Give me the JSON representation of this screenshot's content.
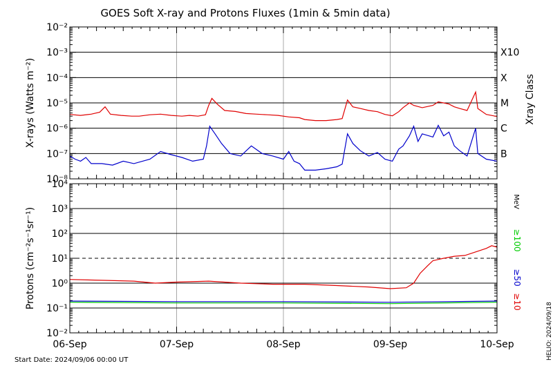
{
  "title": "GOES Soft X-ray and Protons Fluxes   (1min & 5min data)",
  "start_date_label": "Start Date: 2024/09/06 00:00 UT",
  "credit": "HELIO: 2024/09/18",
  "colors": {
    "red": "#e00000",
    "blue": "#0000cc",
    "green": "#00cc00",
    "dashed": "#000000"
  },
  "chart_data": [
    {
      "type": "line",
      "panel": "xray",
      "ylabel": "X-rays (Watts m⁻²)",
      "yscale": "log",
      "ylim": [
        1e-08,
        0.01
      ],
      "y_tick_labels": [
        "10⁻⁸",
        "10⁻⁷",
        "10⁻⁶",
        "10⁻⁵",
        "10⁻⁴",
        "10⁻³",
        "10⁻²"
      ],
      "x_tick_labels": [
        "06-Sep",
        "07-Sep",
        "08-Sep",
        "09-Sep",
        "10-Sep"
      ],
      "xlim_days": [
        0,
        4
      ],
      "right_labels": [
        {
          "label": "X10",
          "value": 0.001
        },
        {
          "label": "X",
          "value": 0.0001
        },
        {
          "label": "M",
          "value": 1e-05
        },
        {
          "label": "C",
          "value": 1e-06
        },
        {
          "label": "B",
          "value": 1e-07
        }
      ],
      "right_axis_title": "Xray Class",
      "series": [
        {
          "color": "red",
          "points": [
            [
              0,
              3.5e-06
            ],
            [
              0.1,
              3.2e-06
            ],
            [
              0.2,
              3.6e-06
            ],
            [
              0.28,
              4.3e-06
            ],
            [
              0.33,
              7e-06
            ],
            [
              0.38,
              3.6e-06
            ],
            [
              0.48,
              3.2e-06
            ],
            [
              0.58,
              3e-06
            ],
            [
              0.65,
              3e-06
            ],
            [
              0.75,
              3.4e-06
            ],
            [
              0.85,
              3.6e-06
            ],
            [
              0.95,
              3.2e-06
            ],
            [
              1.05,
              3e-06
            ],
            [
              1.12,
              3.2e-06
            ],
            [
              1.2,
              3e-06
            ],
            [
              1.27,
              3.4e-06
            ],
            [
              1.3,
              8e-06
            ],
            [
              1.33,
              1.5e-05
            ],
            [
              1.38,
              9e-06
            ],
            [
              1.45,
              5e-06
            ],
            [
              1.55,
              4.6e-06
            ],
            [
              1.65,
              3.8e-06
            ],
            [
              1.75,
              3.6e-06
            ],
            [
              1.85,
              3.4e-06
            ],
            [
              1.95,
              3.2e-06
            ],
            [
              2.05,
              2.8e-06
            ],
            [
              2.15,
              2.6e-06
            ],
            [
              2.2,
              2.2e-06
            ],
            [
              2.3,
              2e-06
            ],
            [
              2.4,
              2e-06
            ],
            [
              2.5,
              2.2e-06
            ],
            [
              2.55,
              2.4e-06
            ],
            [
              2.6,
              1.3e-05
            ],
            [
              2.65,
              7e-06
            ],
            [
              2.72,
              6e-06
            ],
            [
              2.8,
              5e-06
            ],
            [
              2.88,
              4.5e-06
            ],
            [
              2.95,
              3.5e-06
            ],
            [
              3.02,
              3.1e-06
            ],
            [
              3.08,
              4.5e-06
            ],
            [
              3.12,
              6.5e-06
            ],
            [
              3.18,
              1e-05
            ],
            [
              3.22,
              8e-06
            ],
            [
              3.3,
              6.5e-06
            ],
            [
              3.4,
              8e-06
            ],
            [
              3.45,
              1.1e-05
            ],
            [
              3.5,
              1e-05
            ],
            [
              3.55,
              9e-06
            ],
            [
              3.6,
              7e-06
            ],
            [
              3.65,
              6e-06
            ],
            [
              3.72,
              5e-06
            ],
            [
              3.8,
              2.7e-05
            ],
            [
              3.82,
              6e-06
            ],
            [
              3.9,
              3.5e-06
            ],
            [
              4,
              2.9e-06
            ]
          ]
        },
        {
          "color": "blue",
          "points": [
            [
              0,
              8e-08
            ],
            [
              0.05,
              6e-08
            ],
            [
              0.1,
              5e-08
            ],
            [
              0.15,
              7e-08
            ],
            [
              0.2,
              4e-08
            ],
            [
              0.3,
              4e-08
            ],
            [
              0.4,
              3.5e-08
            ],
            [
              0.5,
              5e-08
            ],
            [
              0.6,
              4e-08
            ],
            [
              0.75,
              6e-08
            ],
            [
              0.85,
              1.2e-07
            ],
            [
              0.95,
              9e-08
            ],
            [
              1.05,
              7e-08
            ],
            [
              1.15,
              5e-08
            ],
            [
              1.25,
              6e-08
            ],
            [
              1.28,
              2e-07
            ],
            [
              1.31,
              1.2e-06
            ],
            [
              1.36,
              6e-07
            ],
            [
              1.42,
              2.5e-07
            ],
            [
              1.5,
              1e-07
            ],
            [
              1.6,
              8e-08
            ],
            [
              1.7,
              2e-07
            ],
            [
              1.8,
              1e-07
            ],
            [
              1.9,
              8e-08
            ],
            [
              2.0,
              6e-08
            ],
            [
              2.05,
              1.2e-07
            ],
            [
              2.1,
              5e-08
            ],
            [
              2.15,
              4e-08
            ],
            [
              2.2,
              2.2e-08
            ],
            [
              2.3,
              2.2e-08
            ],
            [
              2.4,
              2.5e-08
            ],
            [
              2.5,
              3e-08
            ],
            [
              2.55,
              3.8e-08
            ],
            [
              2.6,
              6e-07
            ],
            [
              2.65,
              2.5e-07
            ],
            [
              2.72,
              1.3e-07
            ],
            [
              2.8,
              8e-08
            ],
            [
              2.88,
              1.1e-07
            ],
            [
              2.95,
              6e-08
            ],
            [
              3.02,
              5e-08
            ],
            [
              3.08,
              1.5e-07
            ],
            [
              3.12,
              2e-07
            ],
            [
              3.18,
              5e-07
            ],
            [
              3.22,
              1.2e-06
            ],
            [
              3.26,
              3e-07
            ],
            [
              3.3,
              6e-07
            ],
            [
              3.4,
              4.5e-07
            ],
            [
              3.45,
              1.3e-06
            ],
            [
              3.5,
              5e-07
            ],
            [
              3.55,
              7e-07
            ],
            [
              3.6,
              2e-07
            ],
            [
              3.65,
              1.3e-07
            ],
            [
              3.72,
              8e-08
            ],
            [
              3.8,
              1e-06
            ],
            [
              3.82,
              1e-07
            ],
            [
              3.9,
              6e-08
            ],
            [
              4,
              5e-08
            ]
          ]
        }
      ]
    },
    {
      "type": "line",
      "panel": "protons",
      "ylabel": "Protons (cm⁻²s⁻¹sr⁻¹)",
      "yscale": "log",
      "ylim": [
        0.01,
        10000
      ],
      "y_tick_labels": [
        "10⁻²",
        "10⁻¹",
        "10⁰",
        "10¹",
        "10²",
        "10³",
        "10⁴"
      ],
      "x_tick_labels": [
        "06-Sep",
        "07-Sep",
        "08-Sep",
        "09-Sep",
        "10-Sep"
      ],
      "xlim_days": [
        0,
        4
      ],
      "threshold": 10,
      "unit": "MeV",
      "legend": [
        {
          "label": "≥10",
          "color": "red"
        },
        {
          "label": "≥50",
          "color": "blue"
        },
        {
          "label": "≥100",
          "color": "green"
        }
      ],
      "series": [
        {
          "color": "red",
          "points": [
            [
              0,
              1.4
            ],
            [
              0.3,
              1.3
            ],
            [
              0.6,
              1.2
            ],
            [
              0.8,
              1.0
            ],
            [
              1.0,
              1.1
            ],
            [
              1.3,
              1.2
            ],
            [
              1.6,
              1.0
            ],
            [
              1.9,
              0.9
            ],
            [
              2.2,
              0.9
            ],
            [
              2.5,
              0.8
            ],
            [
              2.8,
              0.7
            ],
            [
              3.0,
              0.6
            ],
            [
              3.15,
              0.65
            ],
            [
              3.22,
              1.0
            ],
            [
              3.28,
              2.5
            ],
            [
              3.35,
              5
            ],
            [
              3.4,
              8
            ],
            [
              3.5,
              10
            ],
            [
              3.6,
              12
            ],
            [
              3.7,
              13
            ],
            [
              3.8,
              18
            ],
            [
              3.9,
              25
            ],
            [
              3.95,
              32
            ],
            [
              4,
              28
            ]
          ]
        },
        {
          "color": "blue",
          "points": [
            [
              0,
              0.19
            ],
            [
              1,
              0.18
            ],
            [
              2,
              0.18
            ],
            [
              3,
              0.17
            ],
            [
              4,
              0.19
            ]
          ]
        },
        {
          "color": "green",
          "points": [
            [
              0,
              0.17
            ],
            [
              1,
              0.16
            ],
            [
              2,
              0.16
            ],
            [
              3,
              0.15
            ],
            [
              4,
              0.17
            ]
          ]
        }
      ]
    }
  ]
}
